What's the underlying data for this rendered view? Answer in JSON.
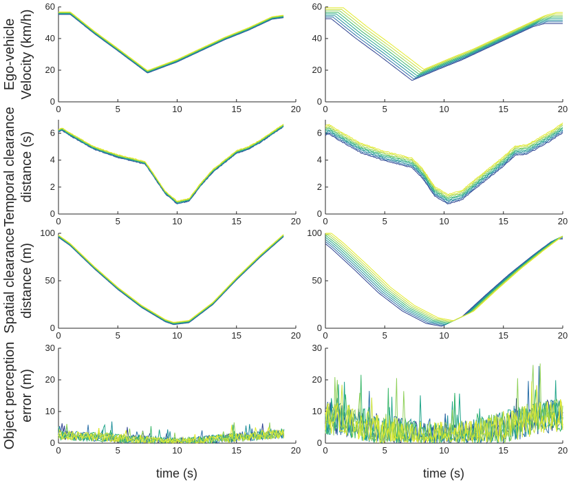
{
  "figure_title": "",
  "series_colors": [
    "#2b3f8f",
    "#2a6fa8",
    "#1f8f9a",
    "#21a58a",
    "#3cb86b",
    "#8fd05a",
    "#c9e03a",
    "#e2ea2a"
  ],
  "x_axis": {
    "label": "time (s)",
    "ticks": [
      "0",
      "5",
      "10",
      "15",
      "20"
    ]
  },
  "chart_data": [
    {
      "id": "velocity-left",
      "type": "line",
      "xlim": [
        0,
        20
      ],
      "ylim": [
        0,
        60
      ],
      "yticks": [
        0,
        20,
        40,
        60
      ],
      "ylabel_lines": [
        "Ego-vehicle",
        "Velocity (km/h)"
      ],
      "base": [
        [
          0,
          56
        ],
        [
          1,
          56
        ],
        [
          3,
          44
        ],
        [
          5,
          33
        ],
        [
          7.5,
          19
        ],
        [
          10,
          26
        ],
        [
          12,
          33
        ],
        [
          14,
          40
        ],
        [
          16,
          46
        ],
        [
          18,
          53
        ],
        [
          19,
          54
        ]
      ],
      "series_count": 8,
      "spread": 0.8,
      "noise": 0
    },
    {
      "id": "velocity-right",
      "type": "line",
      "xlim": [
        0,
        20
      ],
      "ylim": [
        0,
        60
      ],
      "yticks": [
        0,
        20,
        40,
        60
      ],
      "ylabel_lines": [],
      "base": [
        [
          0,
          56
        ],
        [
          1,
          56
        ],
        [
          3,
          44
        ],
        [
          5,
          33
        ],
        [
          7.8,
          17
        ],
        [
          10,
          24
        ],
        [
          12,
          30
        ],
        [
          14,
          37
        ],
        [
          16,
          44
        ],
        [
          18,
          51
        ],
        [
          19,
          53
        ],
        [
          20,
          53
        ]
      ],
      "series_count": 8,
      "spread": 3.5,
      "noise": 0
    },
    {
      "id": "temporal-left",
      "type": "line",
      "xlim": [
        0,
        20
      ],
      "ylim": [
        0,
        7
      ],
      "yticks": [
        0,
        2,
        4,
        6
      ],
      "ylabel_lines": [
        "Temporal clearance",
        "distance (s)"
      ],
      "base": [
        [
          0,
          6.2
        ],
        [
          0.3,
          6.3
        ],
        [
          1,
          5.9
        ],
        [
          3,
          4.9
        ],
        [
          5,
          4.3
        ],
        [
          7.3,
          3.8
        ],
        [
          8,
          2.9
        ],
        [
          9,
          1.6
        ],
        [
          10,
          0.85
        ],
        [
          11,
          1.05
        ],
        [
          12,
          2.2
        ],
        [
          13,
          3.2
        ],
        [
          15,
          4.6
        ],
        [
          16,
          4.9
        ],
        [
          17,
          5.4
        ],
        [
          19,
          6.6
        ]
      ],
      "series_count": 8,
      "spread": 0.1,
      "noise": 0.06
    },
    {
      "id": "temporal-right",
      "type": "line",
      "xlim": [
        0,
        20
      ],
      "ylim": [
        0,
        7
      ],
      "yticks": [
        0,
        2,
        4,
        6
      ],
      "ylabel_lines": [],
      "base": [
        [
          0,
          6.2
        ],
        [
          0.3,
          6.3
        ],
        [
          1,
          5.9
        ],
        [
          3,
          4.9
        ],
        [
          5,
          4.3
        ],
        [
          7.3,
          3.8
        ],
        [
          8.2,
          3.0
        ],
        [
          9.2,
          1.7
        ],
        [
          10.3,
          1.1
        ],
        [
          11.5,
          1.4
        ],
        [
          13,
          2.5
        ],
        [
          15,
          3.9
        ],
        [
          16,
          4.7
        ],
        [
          17,
          4.8
        ],
        [
          19,
          5.8
        ],
        [
          20,
          6.4
        ]
      ],
      "series_count": 8,
      "spread": 0.35,
      "noise": 0.07
    },
    {
      "id": "spatial-left",
      "type": "line",
      "xlim": [
        0,
        20
      ],
      "ylim": [
        0,
        100
      ],
      "yticks": [
        0,
        50,
        100
      ],
      "ylabel_lines": [
        "Spatial clearance",
        "distance (m)"
      ],
      "base": [
        [
          0,
          97
        ],
        [
          1,
          88
        ],
        [
          3,
          64
        ],
        [
          5,
          42
        ],
        [
          7,
          23
        ],
        [
          9,
          8
        ],
        [
          9.7,
          5
        ],
        [
          11,
          7
        ],
        [
          13,
          26
        ],
        [
          15,
          52
        ],
        [
          17,
          76
        ],
        [
          19,
          98
        ]
      ],
      "series_count": 8,
      "spread": 1.2,
      "noise": 0
    },
    {
      "id": "spatial-right",
      "type": "line",
      "xlim": [
        0,
        20
      ],
      "ylim": [
        0,
        100
      ],
      "yticks": [
        0,
        50,
        100
      ],
      "ylabel_lines": [],
      "base": [
        [
          0,
          97
        ],
        [
          1,
          87
        ],
        [
          3,
          64
        ],
        [
          5,
          40
        ],
        [
          7,
          21
        ],
        [
          9,
          8
        ],
        [
          10.3,
          5
        ],
        [
          12,
          15
        ],
        [
          14,
          38
        ],
        [
          16,
          60
        ],
        [
          18,
          80
        ],
        [
          19.5,
          94
        ],
        [
          20,
          97
        ]
      ],
      "series_count": 8,
      "spread": 3.0,
      "noise": 0
    },
    {
      "id": "perception-left",
      "type": "line",
      "xlim": [
        0,
        20
      ],
      "ylim": [
        0,
        30
      ],
      "yticks": [
        0,
        10,
        20,
        30
      ],
      "ylabel_lines": [
        "Object perception",
        "error (m)"
      ],
      "base": [
        [
          0,
          2.5
        ],
        [
          4,
          1.8
        ],
        [
          8,
          0.8
        ],
        [
          10,
          0.3
        ],
        [
          12,
          0.8
        ],
        [
          15,
          1.8
        ],
        [
          19,
          3.0
        ]
      ],
      "series_count": 8,
      "spread": 0,
      "noise": 1.8,
      "x_end": 19
    },
    {
      "id": "perception-right",
      "type": "line",
      "xlim": [
        0,
        20
      ],
      "ylim": [
        0,
        30
      ],
      "yticks": [
        0,
        10,
        20,
        30
      ],
      "ylabel_lines": [],
      "base": [
        [
          0,
          8
        ],
        [
          2,
          7
        ],
        [
          5,
          4
        ],
        [
          8,
          2
        ],
        [
          10,
          1.5
        ],
        [
          12,
          2
        ],
        [
          14,
          4
        ],
        [
          16,
          6
        ],
        [
          18,
          8
        ],
        [
          20,
          9
        ]
      ],
      "series_count": 8,
      "spread": 0,
      "noise": 6.5,
      "x_end": 20
    }
  ]
}
